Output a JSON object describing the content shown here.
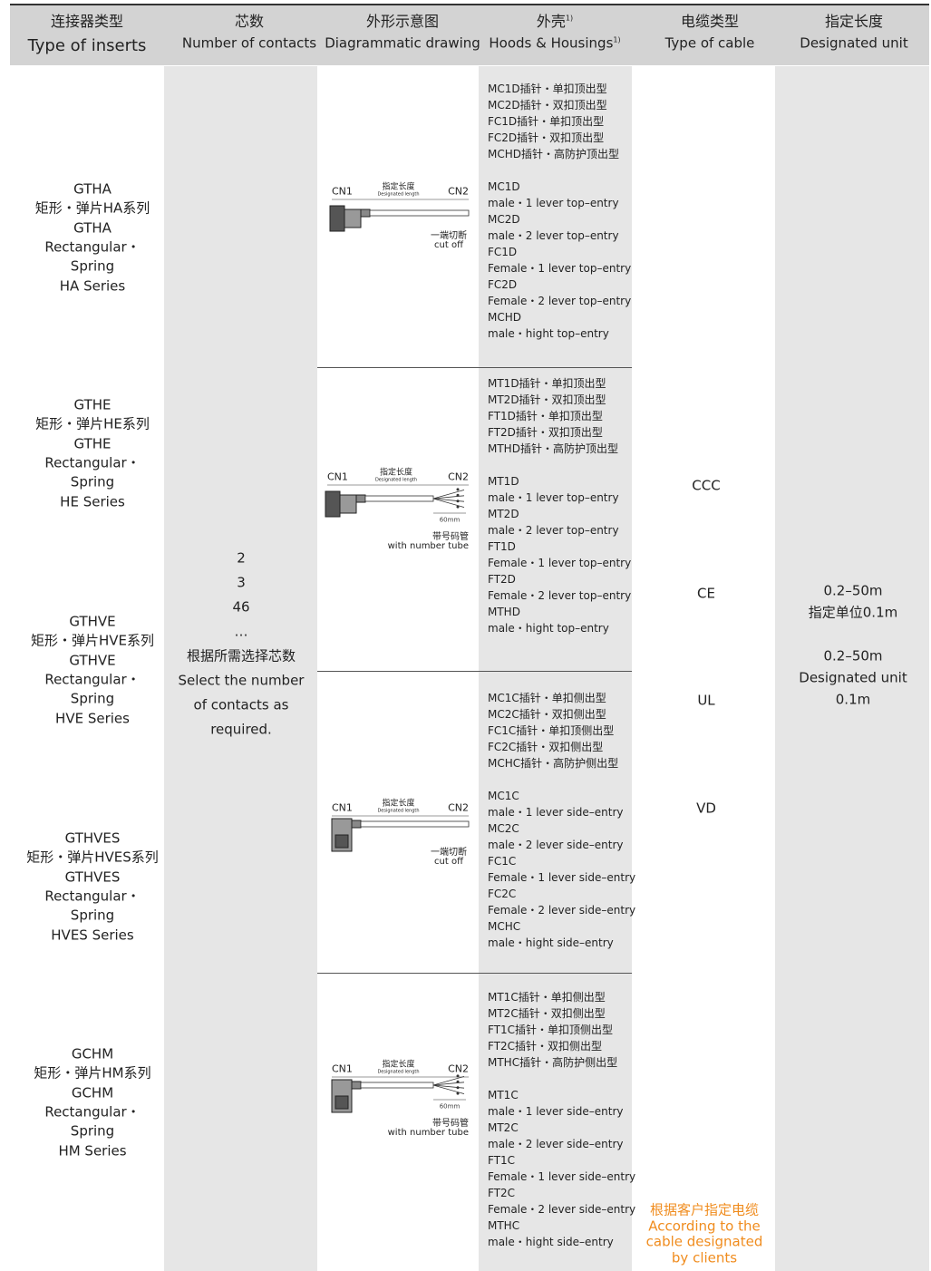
{
  "header": [
    {
      "zh": "连接器类型",
      "en": "Type of inserts"
    },
    {
      "zh": "芯数",
      "en": "Number of contacts"
    },
    {
      "zh": "外形示意图",
      "en": "Diagrammatic drawing"
    },
    {
      "zh": "外壳",
      "zh_note": "1)",
      "en": "Hoods & Housings",
      "en_note": "1)"
    },
    {
      "zh": "电缆类型",
      "en": "Type of cable"
    },
    {
      "zh": "指定长度",
      "en": "Designated unit"
    }
  ],
  "inserts": [
    [
      "GTHA",
      "矩形・弹片HA系列",
      "GTHA",
      "Rectangular・",
      "Spring",
      "HA Series"
    ],
    [
      "GTHE",
      "矩形・弹片HE系列",
      "GTHE",
      "Rectangular・",
      "Spring",
      "HE Series"
    ],
    [
      "GTHVE",
      "矩形・弹片HVE系列",
      "GTHVE",
      "Rectangular・",
      "Spring",
      "HVE Series"
    ],
    [
      "GTHVES",
      "矩形・弹片HVES系列",
      "GTHVES",
      "Rectangular・",
      "Spring",
      "HVES Series"
    ],
    [
      "GCHM",
      "矩形・弹片HM系列",
      "GCHM",
      "Rectangular・",
      "Spring",
      "HM Series"
    ]
  ],
  "contacts": [
    "2",
    "3",
    "46",
    "…",
    "根据所需选择芯数",
    "Select the number",
    "of contacts as",
    "required."
  ],
  "drawings": [
    {
      "left": "CN1",
      "label_zh": "指定长度",
      "label_en": "Designated length",
      "right": "CN2",
      "note_zh": "一端切断",
      "note_en": "cut off"
    },
    {
      "left": "CN1",
      "label_zh": "指定长度",
      "label_en": "Designated length",
      "right": "CN2",
      "length": "60mm",
      "note_zh": "带号码管",
      "note_en": "with number tube"
    },
    {
      "left": "CN1",
      "label_zh": "指定长度",
      "label_en": "Designated length",
      "right": "CN2",
      "note_zh": "一端切断",
      "note_en": "cut off"
    },
    {
      "left": "CN1",
      "label_zh": "指定长度",
      "label_en": "Designated length",
      "right": "CN2",
      "length": "60mm",
      "note_zh": "带号码管",
      "note_en": "with number tube"
    }
  ],
  "housings": [
    {
      "zh": [
        "MC1D插针・单扣顶出型",
        "MC2D插针・双扣顶出型",
        "FC1D插针・单扣顶出型",
        "FC2D插针・双扣顶出型",
        "MCHD插针・高防护顶出型"
      ],
      "en": [
        "MC1D",
        "male・1 lever top–entry",
        "MC2D",
        "male・2 lever top–entry",
        "FC1D",
        "Female・1 lever top–entry",
        "FC2D",
        "Female・2 lever top–entry",
        "MCHD",
        "male・hight top–entry"
      ]
    },
    {
      "zh": [
        "MT1D插针・单扣顶出型",
        "MT2D插针・双扣顶出型",
        "FT1D插针・单扣顶出型",
        "FT2D插针・双扣顶出型",
        "MTHD插针・高防护顶出型"
      ],
      "en": [
        "MT1D",
        "male・1 lever top–entry",
        "MT2D",
        "male・2 lever top–entry",
        "FT1D",
        "Female・1 lever top–entry",
        "FT2D",
        "Female・2 lever top–entry",
        "MTHD",
        "male・hight top–entry"
      ]
    },
    {
      "zh": [
        "MC1C插针・单扣侧出型",
        "MC2C插针・双扣侧出型",
        "FC1C插针・单扣顶侧出型",
        "FC2C插针・双扣侧出型",
        "MCHC插针・高防护侧出型"
      ],
      "en": [
        "MC1C",
        "male・1 lever side–entry",
        "MC2C",
        "male・2 lever side–entry",
        "FC1C",
        "Female・1 lever side–entry",
        "FC2C",
        "Female・2 lever side–entry",
        "MCHC",
        "male・hight side–entry"
      ]
    },
    {
      "zh": [
        "MT1C插针・单扣侧出型",
        "MT2C插针・双扣侧出型",
        "FT1C插针・单扣顶侧出型",
        "FT2C插针・双扣侧出型",
        "MTHC插针・高防护侧出型"
      ],
      "en": [
        "MT1C",
        "male・1 lever side–entry",
        "MT2C",
        "male・2 lever side–entry",
        "FT1C",
        "Female・1 lever side–entry",
        "FT2C",
        "Female・2 lever side–entry",
        "MTHC",
        "male・hight side–entry"
      ]
    }
  ],
  "cables": [
    "CCC",
    "CE",
    "UL",
    "VD"
  ],
  "cable_note": [
    "根据客户指定电缆",
    "According to the",
    "cable designated",
    "by clients"
  ],
  "length": [
    "0.2–50m",
    "指定单位0.1m",
    "0.2–50m",
    "Designated unit",
    "0.1m"
  ]
}
